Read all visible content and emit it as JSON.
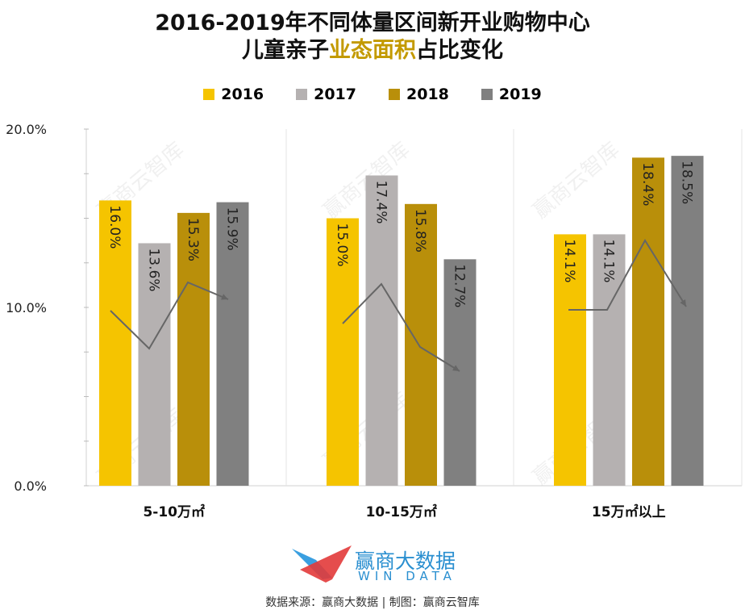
{
  "title_line1": "2016-2019年不同体量区间新开业购物中心",
  "title_line2_a": "儿童亲子",
  "title_line2_b": "业态面积",
  "title_line2_c": "占比变化",
  "colors": {
    "2016": "#F5C400",
    "2017": "#B5B1B1",
    "2018": "#B98F0A",
    "2019": "#808080",
    "highlight": "#C39A00"
  },
  "logo": {
    "name": "赢商大数据",
    "sub": "WIN DATA"
  },
  "footer": "数据来源：赢商大数据 | 制图：赢商云智库",
  "watermark": "赢商云智库",
  "chart_data": {
    "type": "bar",
    "title": "2016-2019年不同体量区间新开业购物中心儿童亲子业态面积占比变化",
    "categories": [
      "5-10万㎡",
      "10-15万㎡",
      "15万㎡以上"
    ],
    "series": [
      {
        "name": "2016",
        "values": [
          16.0,
          15.0,
          14.1
        ]
      },
      {
        "name": "2017",
        "values": [
          13.6,
          17.4,
          14.1
        ]
      },
      {
        "name": "2018",
        "values": [
          15.3,
          15.8,
          18.4
        ]
      },
      {
        "name": "2019",
        "values": [
          15.9,
          12.7,
          18.5
        ]
      }
    ],
    "value_labels": [
      [
        "16.0%",
        "15.0%",
        "14.1%"
      ],
      [
        "13.6%",
        "17.4%",
        "14.1%"
      ],
      [
        "15.3%",
        "15.8%",
        "18.4%"
      ],
      [
        "15.9%",
        "12.7%",
        "18.5%"
      ]
    ],
    "yticks": [
      "0.0%",
      "10.0%",
      "20.0%"
    ],
    "ylim": [
      0,
      20
    ],
    "ylabel": "",
    "xlabel": "",
    "legend": "top",
    "grid": false
  }
}
